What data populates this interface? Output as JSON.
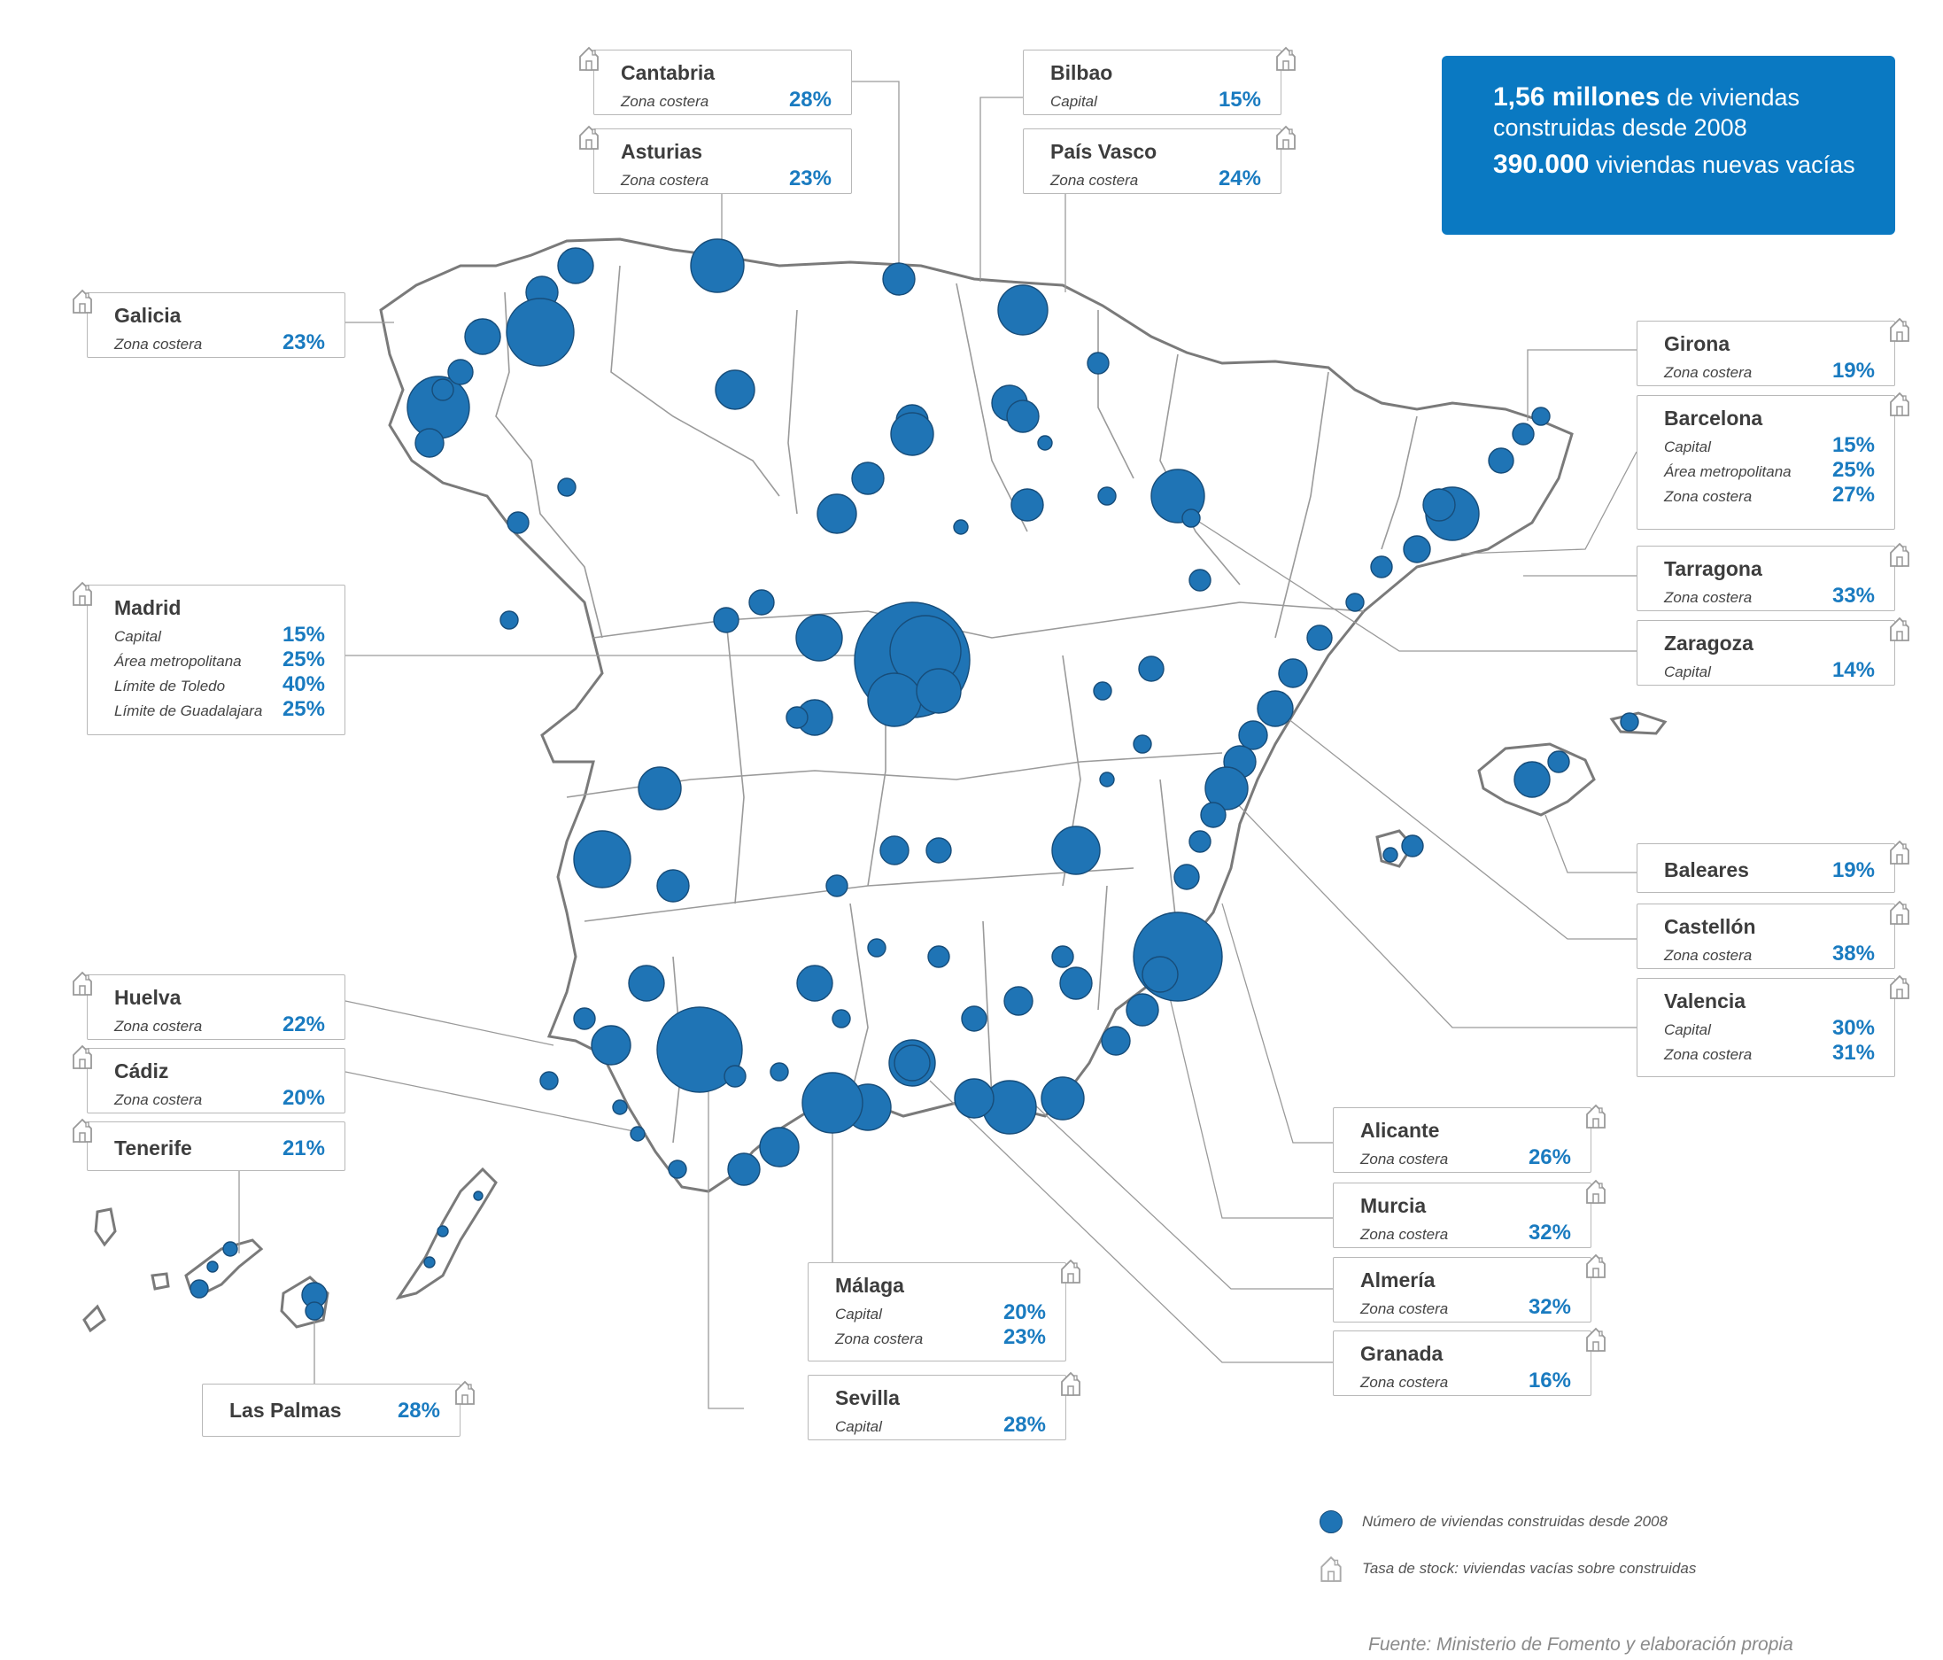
{
  "info": {
    "line1_bold": "1,56 millones",
    "line1_rest": " de viviendas",
    "line2": "construidas desde 2008",
    "line3_bold": "390.000",
    "line3_rest": " viviendas nuevas vacías"
  },
  "callouts": {
    "cantabria": {
      "title": "Cantabria",
      "rows": [
        {
          "label": "Zona costera",
          "value": "28%"
        }
      ]
    },
    "asturias": {
      "title": "Asturias",
      "rows": [
        {
          "label": "Zona costera",
          "value": "23%"
        }
      ]
    },
    "bilbao": {
      "title": "Bilbao",
      "rows": [
        {
          "label": "Capital",
          "value": "15%"
        }
      ]
    },
    "paisvasco": {
      "title": "País Vasco",
      "rows": [
        {
          "label": "Zona costera",
          "value": "24%"
        }
      ]
    },
    "galicia": {
      "title": "Galicia",
      "rows": [
        {
          "label": "Zona costera",
          "value": "23%"
        }
      ]
    },
    "madrid": {
      "title": "Madrid",
      "rows": [
        {
          "label": "Capital",
          "value": "15%"
        },
        {
          "label": "Área metropolitana",
          "value": "25%"
        },
        {
          "label": "Límite de Toledo",
          "value": "40%"
        },
        {
          "label": "Límite de Guadalajara",
          "value": "25%"
        }
      ]
    },
    "huelva": {
      "title": "Huelva",
      "rows": [
        {
          "label": "Zona costera",
          "value": "22%"
        }
      ]
    },
    "cadiz": {
      "title": "Cádiz",
      "rows": [
        {
          "label": "Zona costera",
          "value": "20%"
        }
      ]
    },
    "tenerife": {
      "title": "Tenerife",
      "value": "21%"
    },
    "laspalmas": {
      "title": "Las Palmas",
      "value": "28%"
    },
    "malaga": {
      "title": "Málaga",
      "rows": [
        {
          "label": "Capital",
          "value": "20%"
        },
        {
          "label": "Zona costera",
          "value": "23%"
        }
      ]
    },
    "sevilla": {
      "title": "Sevilla",
      "rows": [
        {
          "label": "Capital",
          "value": "28%"
        }
      ]
    },
    "girona": {
      "title": "Girona",
      "rows": [
        {
          "label": "Zona costera",
          "value": "19%"
        }
      ]
    },
    "barcelona": {
      "title": "Barcelona",
      "rows": [
        {
          "label": "Capital",
          "value": "15%"
        },
        {
          "label": "Área metropolitana",
          "value": "25%"
        },
        {
          "label": "Zona costera",
          "value": "27%"
        }
      ]
    },
    "tarragona": {
      "title": "Tarragona",
      "rows": [
        {
          "label": "Zona costera",
          "value": "33%"
        }
      ]
    },
    "zaragoza": {
      "title": "Zaragoza",
      "rows": [
        {
          "label": "Capital",
          "value": "14%"
        }
      ]
    },
    "baleares": {
      "title": "Baleares",
      "value": "19%"
    },
    "castellon": {
      "title": "Castellón",
      "rows": [
        {
          "label": "Zona costera",
          "value": "38%"
        }
      ]
    },
    "valencia": {
      "title": "Valencia",
      "rows": [
        {
          "label": "Capital",
          "value": "30%"
        },
        {
          "label": "Zona costera",
          "value": "31%"
        }
      ]
    },
    "alicante": {
      "title": "Alicante",
      "rows": [
        {
          "label": "Zona costera",
          "value": "26%"
        }
      ]
    },
    "murcia": {
      "title": "Murcia",
      "rows": [
        {
          "label": "Zona costera",
          "value": "32%"
        }
      ]
    },
    "almeria": {
      "title": "Almería",
      "rows": [
        {
          "label": "Zona costera",
          "value": "32%"
        }
      ]
    },
    "granada": {
      "title": "Granada",
      "rows": [
        {
          "label": "Zona costera",
          "value": "16%"
        }
      ]
    }
  },
  "legend": {
    "bubbles": "Número de viviendas construidas desde 2008",
    "houses": "Tasa de stock: viviendas vacías sobre construidas"
  },
  "source": "Fuente: Ministerio de Fomento y elaboración propia",
  "colors": {
    "accent": "#1a7bc0",
    "bubble": "#1f74b5",
    "box": "#0a79c2"
  }
}
